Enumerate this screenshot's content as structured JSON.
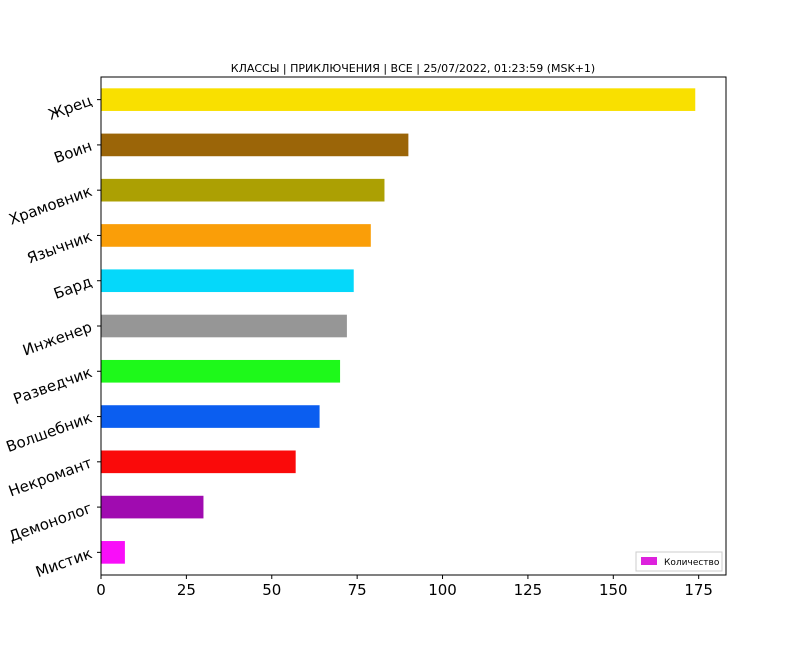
{
  "chart_data": {
    "type": "bar",
    "orientation": "horizontal",
    "title": "КЛАССЫ | ПРИКЛЮЧЕНИЯ | ВСЕ | 25/07/2022, 01:23:59 (MSK+1)",
    "xlabel": "",
    "ylabel": "",
    "xlim": [
      0,
      183
    ],
    "xticks": [
      0,
      25,
      50,
      75,
      100,
      125,
      150,
      175
    ],
    "grid": false,
    "legend_position": "bottom-right",
    "categories": [
      "Жрец",
      "Воин",
      "Храмовник",
      "Язычник",
      "Бард",
      "Инженер",
      "Разведчик",
      "Волшебник",
      "Некромант",
      "Демонолог",
      "Мистик"
    ],
    "series": [
      {
        "name": "Количество",
        "legend_color": "#dd22dd",
        "values": [
          174,
          90,
          83,
          79,
          74,
          72,
          70,
          64,
          57,
          30,
          7
        ],
        "colors": [
          "#f9e000",
          "#9b6508",
          "#aca003",
          "#fa9e08",
          "#05d8fa",
          "#969696",
          "#1ef91a",
          "#0b5ef0",
          "#fa0a0a",
          "#a00bb0",
          "#f90ef9"
        ]
      }
    ]
  }
}
